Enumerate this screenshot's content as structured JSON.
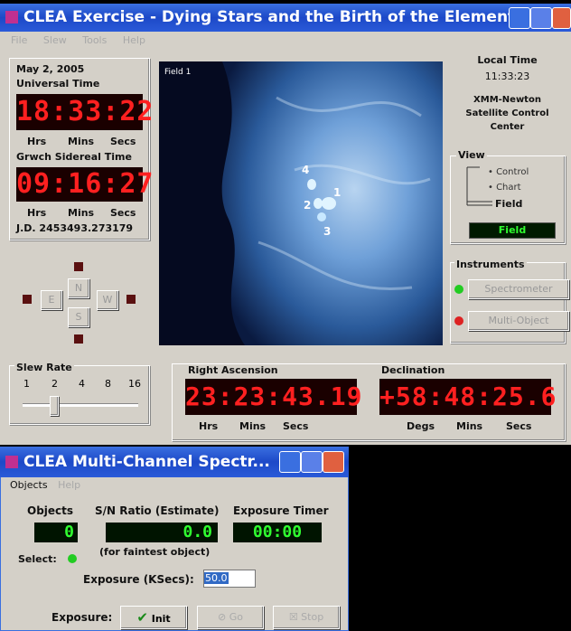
{
  "main_window": {
    "title": "CLEA Exercise - Dying Stars and the Birth of the Elements",
    "menu": [
      "File",
      "Slew",
      "Tools",
      "Help"
    ],
    "clock_panel": {
      "date": "May 2, 2005",
      "ut_label": "Universal Time",
      "ut": "18:33:22",
      "ut_units": [
        "Hrs",
        "Mins",
        "Secs"
      ],
      "st_label": "Grwch Sidereal Time",
      "st": "09:16:27",
      "st_units": [
        "Hrs",
        "Mins",
        "Secs"
      ],
      "jd": "J.D. 2453493.273179"
    },
    "field_image": {
      "label": "Field 1",
      "stars": [
        "4",
        "1",
        "2",
        "3"
      ]
    },
    "local_time": {
      "label": "Local Time",
      "time": "11:33:23",
      "center": [
        "XMM-Newton",
        "Satellite Control",
        "Center"
      ]
    },
    "view": {
      "title": "View",
      "options": [
        "Control",
        "Chart",
        "Field"
      ],
      "indicator": "Field"
    },
    "instruments": {
      "title": "Instruments",
      "buttons": [
        "Spectrometer",
        "Multi-Object"
      ]
    },
    "direction": [
      "N",
      "E",
      "W",
      "S"
    ],
    "slew_rate": {
      "title": "Slew Rate",
      "rates": [
        "1",
        "2",
        "4",
        "8",
        "16"
      ]
    },
    "right_ascension": {
      "label": "Right Ascension",
      "value": "23:23:43.19",
      "units": [
        "Hrs",
        "Mins",
        "Secs"
      ]
    },
    "declination": {
      "label": "Declination",
      "value": "+58:48:25.6",
      "units": [
        "Degs",
        "Mins",
        "Secs"
      ]
    }
  },
  "spectrometer_window": {
    "title": "CLEA Multi-Channel Spectr...",
    "menu": [
      "Objects",
      "Help"
    ],
    "objects_label": "Objects",
    "objects": "0",
    "sn_label": "S/N Ratio (Estimate)",
    "sn": "0.0",
    "timer_label": "Exposure Timer",
    "timer": "00:00",
    "select_label": "Select:",
    "sn_note": "(for faintest object)",
    "exposure_label": "Exposure (KSecs):",
    "exposure": "50.0",
    "exposure_buttons_label": "Exposure:",
    "buttons": [
      "Init",
      "Go",
      "Stop"
    ]
  }
}
